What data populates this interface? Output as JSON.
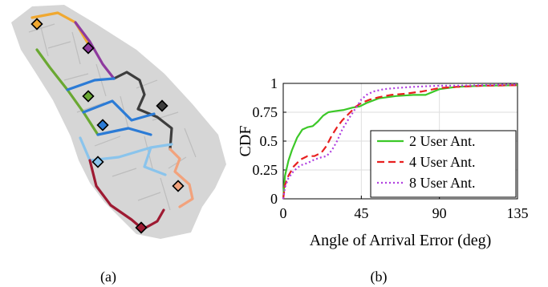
{
  "figure": {
    "panel_a_caption": "(a)",
    "panel_b_caption": "(b)"
  },
  "panel_a": {
    "map_fill": "#d6d6d6",
    "walls_color": "#bdbdbd",
    "path_colors": [
      "#f0a830",
      "#8e3a9e",
      "#6aa832",
      "#3d3d3d",
      "#2b7bd6",
      "#8ac4ec",
      "#f2a27c",
      "#9e1a32"
    ],
    "marker_colors": [
      "#f0a830",
      "#8e3a9e",
      "#6aa832",
      "#3d3d3d",
      "#2b7bd6",
      "#8ac4ec",
      "#f2a27c",
      "#9e1a32"
    ]
  },
  "chart_data": {
    "type": "line",
    "xlabel": "Angle of Arrival Error (deg)",
    "ylabel": "CDF",
    "xlim": [
      0,
      135
    ],
    "ylim": [
      0,
      1
    ],
    "xticks": [
      0,
      45,
      90,
      135
    ],
    "xtick_labels": [
      "0",
      "45",
      "90",
      "135"
    ],
    "yticks": [
      0,
      0.25,
      0.5,
      0.75,
      1
    ],
    "ytick_labels": [
      "0",
      "0.25",
      "0.5",
      "0.75",
      "1"
    ],
    "grid": true,
    "legend_position": "bottom-right",
    "series": [
      {
        "name": "2 User Ant.",
        "color": "#3cc828",
        "dash": "solid",
        "x": [
          0,
          1,
          3,
          5,
          8,
          11,
          14,
          17,
          20,
          23,
          26,
          30,
          35,
          40,
          44,
          48,
          55,
          65,
          75,
          82,
          90,
          100,
          115,
          135
        ],
        "y": [
          0,
          0.2,
          0.33,
          0.42,
          0.53,
          0.6,
          0.62,
          0.63,
          0.67,
          0.72,
          0.75,
          0.76,
          0.77,
          0.79,
          0.8,
          0.83,
          0.87,
          0.89,
          0.9,
          0.9,
          0.95,
          0.97,
          0.98,
          0.985
        ]
      },
      {
        "name": "4  User Ant.",
        "color": "#e82020",
        "dash": "dashed",
        "x": [
          0,
          1,
          3,
          6,
          10,
          14,
          18,
          22,
          25,
          28,
          31,
          34,
          38,
          42,
          45,
          50,
          55,
          62,
          70,
          80,
          90,
          100,
          115,
          135
        ],
        "y": [
          0,
          0.12,
          0.2,
          0.28,
          0.34,
          0.37,
          0.37,
          0.4,
          0.46,
          0.55,
          0.62,
          0.68,
          0.74,
          0.8,
          0.83,
          0.86,
          0.88,
          0.9,
          0.91,
          0.93,
          0.96,
          0.97,
          0.98,
          0.985
        ]
      },
      {
        "name": "8  User Ant.",
        "color": "#b040e0",
        "dash": "dotted",
        "x": [
          0,
          1,
          3,
          6,
          10,
          14,
          18,
          22,
          25,
          28,
          31,
          34,
          38,
          42,
          45,
          48,
          52,
          58,
          65,
          75,
          90,
          100,
          115,
          135
        ],
        "y": [
          0,
          0.1,
          0.18,
          0.24,
          0.29,
          0.31,
          0.34,
          0.36,
          0.37,
          0.42,
          0.5,
          0.6,
          0.7,
          0.79,
          0.86,
          0.9,
          0.93,
          0.95,
          0.96,
          0.97,
          0.98,
          0.98,
          0.985,
          0.99
        ]
      }
    ]
  }
}
